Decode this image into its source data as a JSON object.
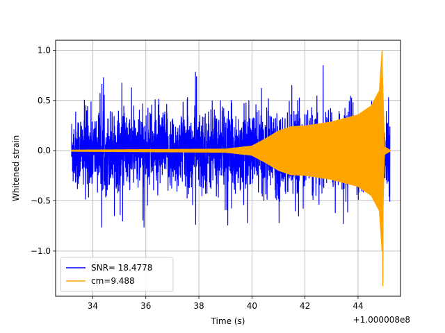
{
  "chart_data": {
    "type": "line",
    "title": "",
    "xlabel": "Time (s)",
    "ylabel": "Whitened strain",
    "x_offset_label": "+1.000008e8",
    "xlim": [
      32.6,
      45.6
    ],
    "ylim": [
      -1.45,
      1.1
    ],
    "xticks": [
      34,
      36,
      38,
      40,
      42,
      44
    ],
    "yticks": [
      -1.0,
      -0.5,
      0.0,
      0.5,
      1.0
    ],
    "xtick_labels": [
      "34",
      "36",
      "38",
      "40",
      "42",
      "44"
    ],
    "ytick_labels": [
      "−1.0",
      "−0.5",
      "0.0",
      "0.5",
      "1.0"
    ],
    "grid": true,
    "legend_placement": "lower-left",
    "series": [
      {
        "name": "SNR= 18.4778",
        "color": "#0000ff",
        "x_range": [
          33.2,
          45.2
        ],
        "typical_amplitude": 0.6,
        "peak_max": 1.0,
        "peak_min": -0.9
      },
      {
        "name": "cm=9.488",
        "color": "#ffa500",
        "envelope": [
          {
            "x": 33.2,
            "y": 0.01
          },
          {
            "x": 39.0,
            "y": 0.02
          },
          {
            "x": 40.0,
            "y": 0.05
          },
          {
            "x": 40.5,
            "y": 0.12
          },
          {
            "x": 41.0,
            "y": 0.2
          },
          {
            "x": 41.5,
            "y": 0.245
          },
          {
            "x": 42.0,
            "y": 0.25
          },
          {
            "x": 43.0,
            "y": 0.29
          },
          {
            "x": 44.0,
            "y": 0.36
          },
          {
            "x": 44.5,
            "y": 0.45
          },
          {
            "x": 44.8,
            "y": 0.6
          },
          {
            "x": 44.9,
            "y": 1.0
          },
          {
            "x": 45.0,
            "y": 0.04
          },
          {
            "x": 45.2,
            "y": 0.01
          }
        ],
        "peak_max": 1.0,
        "peak_min": -1.35
      }
    ]
  }
}
